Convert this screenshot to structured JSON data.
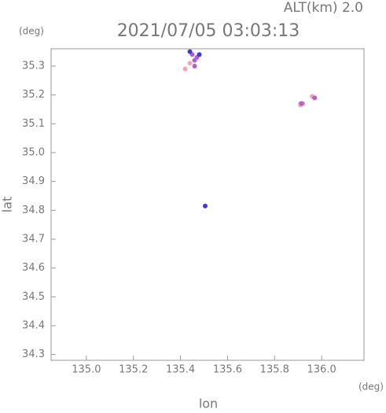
{
  "chart_data": {
    "type": "scatter",
    "title": "2021/07/05 03:03:13",
    "altitude_label": "ALT(km) 2.0",
    "y_unit": "(deg)",
    "x_unit": "(deg)",
    "xlabel": "lon",
    "ylabel": "lat",
    "xlim": [
      134.85,
      136.18
    ],
    "ylim": [
      34.28,
      35.36
    ],
    "xticks": [
      {
        "value": 135.0,
        "label": "135.0"
      },
      135.2,
      135.4,
      135.6,
      135.8,
      {
        "value": 136.0,
        "label": "136.0"
      }
    ],
    "yticks": [
      34.3,
      34.4,
      34.5,
      34.6,
      34.7,
      34.8,
      34.9,
      {
        "value": 35.0,
        "label": "35.0"
      },
      35.1,
      35.2,
      35.3
    ],
    "series": [
      {
        "color": "#f2a4b4",
        "x": [
          135.42,
          135.44,
          135.91,
          135.92,
          135.91,
          135.96,
          135.97
        ],
        "values": [
          35.29,
          35.31,
          35.17,
          35.17,
          35.165,
          35.195,
          35.19
        ]
      },
      {
        "color": "#b060d0",
        "x": [
          135.45,
          135.46,
          135.47,
          135.46,
          135.915,
          135.97
        ],
        "values": [
          35.34,
          35.32,
          35.33,
          35.3,
          35.17,
          35.19
        ]
      },
      {
        "color": "#3a3ae0",
        "x": [
          135.44,
          135.48,
          135.505
        ],
        "values": [
          35.35,
          35.34,
          34.815
        ]
      }
    ]
  }
}
